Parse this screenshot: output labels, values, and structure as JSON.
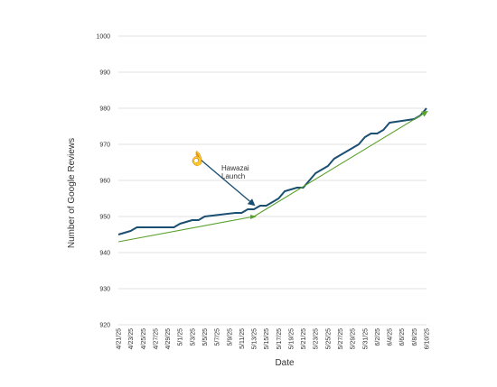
{
  "chart_data": {
    "type": "line",
    "title": "",
    "xlabel": "Date",
    "ylabel": "Number of Google Reviews",
    "ylim": [
      920,
      1000
    ],
    "yticks": [
      920,
      930,
      940,
      950,
      960,
      970,
      980,
      990,
      1000
    ],
    "grid": true,
    "legend": "none",
    "x_ticks": [
      "4/21/25",
      "4/23/25",
      "4/25/25",
      "4/27/25",
      "4/29/25",
      "5/1/25",
      "5/3/25",
      "5/5/25",
      "5/7/25",
      "5/9/25",
      "5/11/25",
      "5/13/25",
      "5/15/25",
      "5/17/25",
      "5/19/25",
      "5/21/25",
      "5/23/25",
      "5/25/25",
      "5/27/25",
      "5/29/25",
      "5/31/25",
      "6/2/25",
      "6/4/25",
      "6/6/25",
      "6/8/25",
      "6/10/25"
    ],
    "x_start": "2025-04-21",
    "series": [
      {
        "color": "#1b4f72",
        "x": [
          "2025-04-21",
          "2025-04-23",
          "2025-04-24",
          "2025-04-30",
          "2025-05-01",
          "2025-05-03",
          "2025-05-04",
          "2025-05-05",
          "2025-05-10",
          "2025-05-11",
          "2025-05-12",
          "2025-05-13",
          "2025-05-14",
          "2025-05-15",
          "2025-05-16",
          "2025-05-17",
          "2025-05-18",
          "2025-05-20",
          "2025-05-21",
          "2025-05-22",
          "2025-05-23",
          "2025-05-24",
          "2025-05-25",
          "2025-05-26",
          "2025-05-27",
          "2025-05-28",
          "2025-05-29",
          "2025-05-30",
          "2025-05-31",
          "2025-06-01",
          "2025-06-02",
          "2025-06-03",
          "2025-06-04",
          "2025-06-08",
          "2025-06-09",
          "2025-06-10"
        ],
        "y": [
          945,
          946,
          947,
          947,
          948,
          949,
          949,
          950,
          951,
          951,
          952,
          952,
          953,
          953,
          954,
          955,
          957,
          958,
          958,
          960,
          962,
          963,
          964,
          966,
          967,
          968,
          969,
          970,
          972,
          973,
          973,
          974,
          976,
          977,
          978,
          980
        ]
      },
      {
        "color": "#5aa02c",
        "x": [
          "2025-04-21",
          "2025-05-13",
          "2025-06-10"
        ],
        "y": [
          943,
          950,
          979
        ]
      }
    ],
    "annotations": [
      {
        "text_lines": [
          "Hawazai",
          "Launch"
        ],
        "arrow_to": {
          "x": "2025-05-13",
          "y": 952.5
        }
      }
    ]
  },
  "annotation_icon": {
    "name": "ok-hand-icon",
    "glyph": "👌",
    "color": "#b5179e"
  }
}
